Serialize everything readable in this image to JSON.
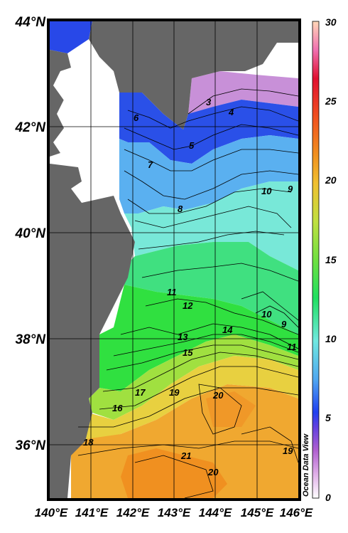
{
  "map": {
    "latitude_labels": [
      "44°N",
      "42°N",
      "40°N",
      "38°N",
      "36°N"
    ],
    "longitude_labels": [
      "140°E",
      "141°E",
      "142°E",
      "143°E",
      "144°E",
      "145°E",
      "146°E"
    ],
    "lat_range": [
      35,
      44
    ],
    "lon_range": [
      140,
      146
    ],
    "land_color": "#666666",
    "no_data_color": "#ffffff"
  },
  "colorbar": {
    "min": 0,
    "max": 30,
    "tick_labels": [
      "0",
      "5",
      "10",
      "15",
      "20",
      "25",
      "30"
    ],
    "stops": [
      "#ffffff",
      "#d8a0e0",
      "#b060d0",
      "#5050e0",
      "#2040f0",
      "#4aa0f0",
      "#70e8e0",
      "#30e060",
      "#80e040",
      "#c0e040",
      "#f0c030",
      "#f09020",
      "#f05020",
      "#e01020",
      "#f060a0",
      "#ffd0b0"
    ]
  },
  "contours": {
    "labels": [
      "3",
      "4",
      "5",
      "6",
      "7",
      "8",
      "9",
      "10",
      "11",
      "12",
      "13",
      "14",
      "15",
      "16",
      "17",
      "18",
      "19",
      "20",
      "21",
      "10",
      "9",
      "11",
      "20",
      "19"
    ]
  },
  "watermark": "Ocean Data View"
}
